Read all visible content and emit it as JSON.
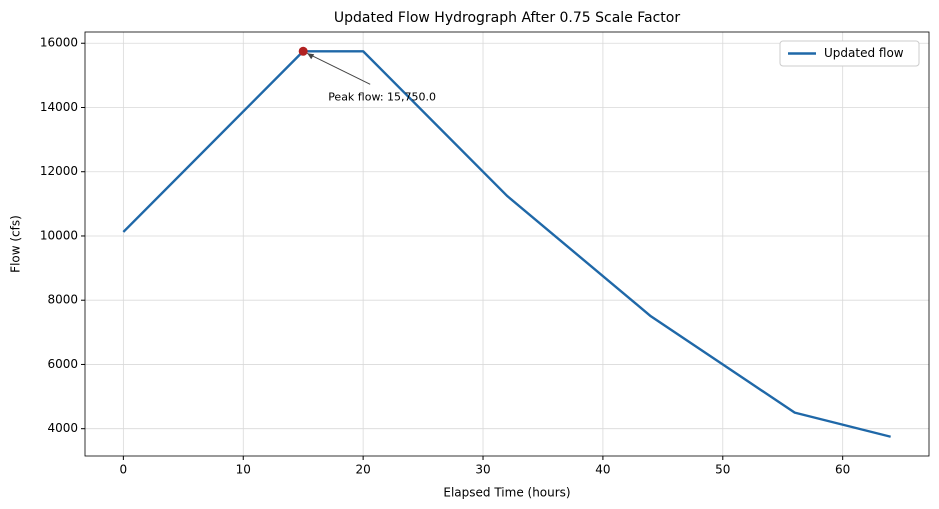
{
  "chart_data": {
    "type": "line",
    "title": "Updated Flow Hydrograph After 0.75 Scale Factor",
    "x_label": "Elapsed Time (hours)",
    "y_label": "Flow (cfs)",
    "x": [
      0,
      15,
      20,
      32,
      44,
      56,
      64
    ],
    "series": [
      {
        "name": "Updated flow",
        "color": "#1f68a8",
        "values": [
          10125,
          15750,
          15750,
          11250,
          7500,
          4500,
          3750
        ]
      }
    ],
    "xlim": [
      -3.2,
      67.2
    ],
    "xticks": [
      0,
      10,
      20,
      30,
      40,
      50,
      60
    ],
    "ylim": [
      3150,
      16350
    ],
    "yticks": [
      4000,
      6000,
      8000,
      10000,
      12000,
      14000,
      16000
    ],
    "grid": true,
    "legend": "upper right",
    "annotation": {
      "text": "Peak flow: 15,750.0",
      "x": 15,
      "y": 15750,
      "color": "#b22222"
    }
  }
}
